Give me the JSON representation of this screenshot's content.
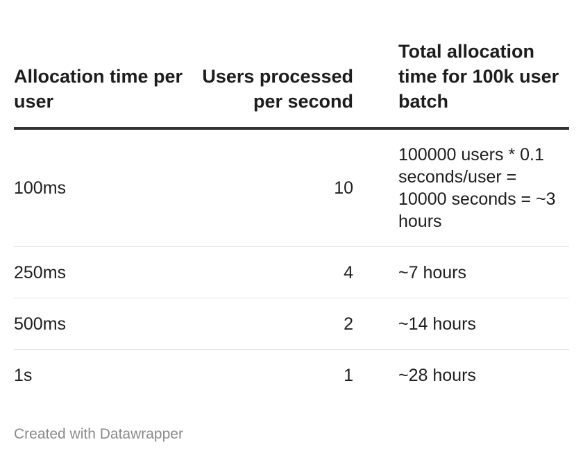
{
  "chart_data": {
    "type": "table",
    "columns": [
      "Allocation time per user",
      "Users processed per second",
      "Total allocation time for 100k user batch"
    ],
    "rows": [
      [
        "100ms",
        "10",
        "100000 users * 0.1 seconds/user = 10000 seconds = ~3 hours"
      ],
      [
        "250ms",
        "4",
        "~7 hours"
      ],
      [
        "500ms",
        "2",
        "~14 hours"
      ],
      [
        "1s",
        "1",
        "~28 hours"
      ]
    ]
  },
  "footer": {
    "credit": "Created with Datawrapper"
  }
}
